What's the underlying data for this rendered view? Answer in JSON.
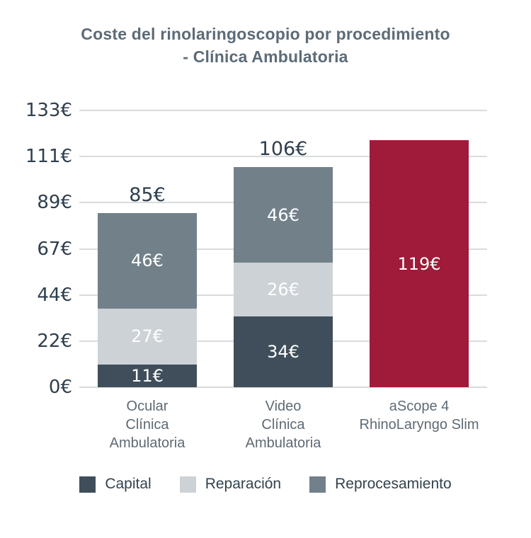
{
  "title": {
    "line1": "Coste del rinolaringoscopio por procedimiento",
    "line2": "- Clínica Ambulatoria"
  },
  "colors": {
    "capital": "#3f4e5a",
    "reparacion": "#cdd2d7",
    "reprocesamiento": "#72808a",
    "ascope": "#9f1b39",
    "gridline": "#d9dbdc",
    "title_text": "#5c6b77",
    "tick_text": "#2f3f4e",
    "category_text": "#5e6a74",
    "segment_label_text": "#ffffff"
  },
  "chart_data": {
    "type": "bar",
    "stacked": true,
    "title": "Coste del rinolaringoscopio por procedimiento - Clínica Ambulatoria",
    "xlabel": "",
    "ylabel": "",
    "ylim": [
      0,
      133.33
    ],
    "grid": true,
    "legend_position": "bottom",
    "currency": "€",
    "y_ticks": [
      "133€",
      "111€",
      "89€",
      "67€",
      "44€",
      "22€",
      "0€"
    ],
    "y_tick_values": [
      133.33,
      111.11,
      88.89,
      66.67,
      44.44,
      22.22,
      0
    ],
    "categories": [
      "Ocular Clínica Ambulatoria",
      "Video Clínica Ambulatoria",
      "aScope 4 RhinoLaryngo Slim"
    ],
    "series": [
      {
        "name": "Capital",
        "values": [
          11,
          34,
          0
        ]
      },
      {
        "name": "Reparación",
        "values": [
          27,
          26,
          0
        ]
      },
      {
        "name": "Reprocesamiento",
        "values": [
          46,
          46,
          0
        ]
      },
      {
        "name": "aScope 4 RhinoLaryngo Slim",
        "values": [
          0,
          0,
          119
        ]
      }
    ],
    "bars": [
      {
        "label_lines": [
          "Ocular",
          "Clínica",
          "Ambulatoria"
        ],
        "total": 85,
        "total_label": "85€",
        "segments": [
          {
            "name": "Capital",
            "value": 11,
            "label": "11€",
            "color_key": "capital"
          },
          {
            "name": "Reparación",
            "value": 27,
            "label": "27€",
            "color_key": "reparacion"
          },
          {
            "name": "Reprocesamiento",
            "value": 46,
            "label": "46€",
            "color_key": "reprocesamiento"
          }
        ]
      },
      {
        "label_lines": [
          "Video",
          "Clínica",
          "Ambulatoria"
        ],
        "total": 106,
        "total_label": "106€",
        "segments": [
          {
            "name": "Capital",
            "value": 34,
            "label": "34€",
            "color_key": "capital"
          },
          {
            "name": "Reparación",
            "value": 26,
            "label": "26€",
            "color_key": "reparacion"
          },
          {
            "name": "Reprocesamiento",
            "value": 46,
            "label": "46€",
            "color_key": "reprocesamiento"
          }
        ]
      },
      {
        "label_lines": [
          "aScope 4",
          "RhinoLaryngo Slim"
        ],
        "total": 119,
        "total_label": "",
        "segments": [
          {
            "name": "aScope 4 RhinoLaryngo Slim",
            "value": 119,
            "label": "119€",
            "color_key": "ascope"
          }
        ]
      }
    ]
  },
  "legend": {
    "items": [
      {
        "label": "Capital",
        "color_key": "capital"
      },
      {
        "label": "Reparación",
        "color_key": "reparacion"
      },
      {
        "label": "Reprocesamiento",
        "color_key": "reprocesamiento"
      }
    ]
  }
}
